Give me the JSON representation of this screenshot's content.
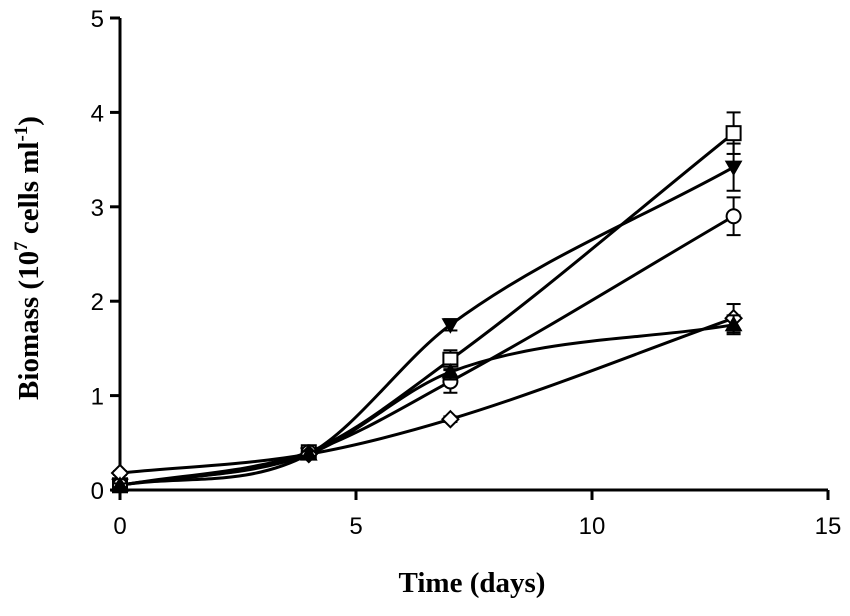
{
  "chart_data": {
    "type": "line",
    "title": "",
    "xlabel": "Time (days)",
    "ylabel_main": "Biomass (10",
    "ylabel_sup1": "7",
    "ylabel_mid": " cells ml",
    "ylabel_sup2": "-1",
    "ylabel_end": ")",
    "xlim": [
      0,
      15
    ],
    "ylim": [
      0,
      5
    ],
    "xticks": [
      0,
      5,
      10,
      15
    ],
    "yticks": [
      0,
      1,
      2,
      3,
      4,
      5
    ],
    "x": [
      0,
      4,
      7,
      13
    ],
    "series": [
      {
        "name": "open square",
        "marker": "square-open",
        "values": [
          0.05,
          0.4,
          1.38,
          3.78
        ],
        "errors": [
          0.02,
          0.03,
          0.1,
          0.22
        ]
      },
      {
        "name": "filled inverted triangle",
        "marker": "triangle-down-filled",
        "values": [
          0.05,
          0.38,
          1.75,
          3.42
        ],
        "errors": [
          0.02,
          0.03,
          0.06,
          0.25
        ]
      },
      {
        "name": "open circle",
        "marker": "circle-open",
        "values": [
          0.05,
          0.4,
          1.15,
          2.9
        ],
        "errors": [
          0.02,
          0.03,
          0.12,
          0.2
        ]
      },
      {
        "name": "open diamond",
        "marker": "diamond-open",
        "values": [
          0.18,
          0.38,
          0.75,
          1.82
        ],
        "errors": [
          0.02,
          0.03,
          0.03,
          0.15
        ]
      },
      {
        "name": "filled triangle",
        "marker": "triangle-up-filled",
        "values": [
          0.05,
          0.38,
          1.25,
          1.75
        ],
        "errors": [
          0.02,
          0.03,
          0.08,
          0.1
        ]
      }
    ]
  }
}
